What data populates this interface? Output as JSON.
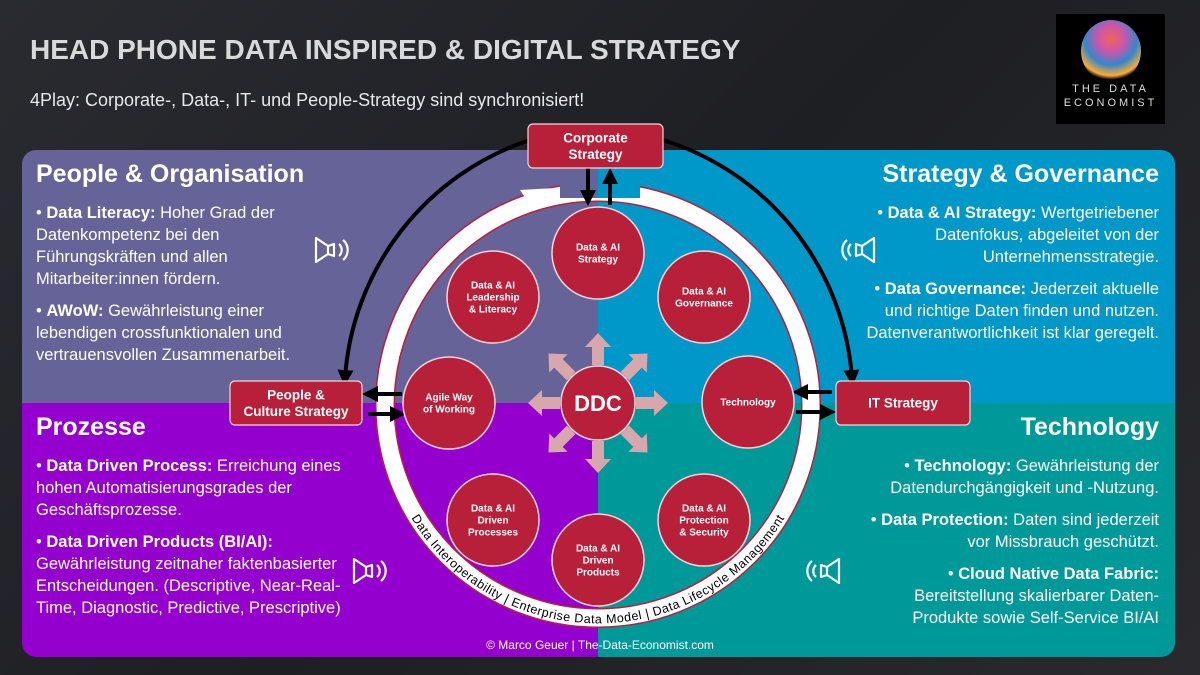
{
  "header": {
    "title": "HEAD PHONE DATA INSPIRED & DIGITAL STRATEGY",
    "subtitle": "4Play: Corporate-, Data-, IT- und People-Strategy sind synchronisiert!"
  },
  "logo": {
    "line1": "THE DATA",
    "line2": "ECONOMIST"
  },
  "panels": {
    "people": {
      "title": "People & Organisation",
      "color": "#656397",
      "items": [
        {
          "bold": "Data Literacy:",
          "text": " Hoher Grad der Datenkompetenz bei den Führungskräften und allen Mitarbeiter:innen fördern."
        },
        {
          "bold": "AWoW:",
          "text": " Gewährleistung einer lebendigen crossfunktionalen und vertrauensvollen Zusammenarbeit."
        }
      ]
    },
    "strategy": {
      "title": "Strategy & Governance",
      "color": "#0097c9",
      "items": [
        {
          "bold": "Data & AI Strategy:",
          "text": " Wertgetriebener Datenfokus, abgeleitet von der Unternehmensstrategie."
        },
        {
          "bold": "Data Governance:",
          "text": " Jederzeit aktuelle und richtige Daten finden und nutzen. Datenverantwortlichkeit ist klar geregelt."
        }
      ]
    },
    "prozesse": {
      "title": "Prozesse",
      "color": "#9400cd",
      "items": [
        {
          "bold": "Data Driven Process:",
          "text": " Erreichung eines hohen Automatisierungsgrades der Geschäftsprozesse."
        },
        {
          "bold": "Data Driven Products (BI/AI):",
          "text": " Gewährleistung zeitnaher faktenbasierter Entscheidungen. (Descriptive, Near-Real-Time, Diagnostic, Predictive, Prescriptive)"
        }
      ]
    },
    "technology": {
      "title": "Technology",
      "color": "#00999a",
      "items": [
        {
          "bold": "Technology:",
          "text": " Gewährleistung der Datendurchgängigkeit und -Nutzung."
        },
        {
          "bold": "Data Protection:",
          "text": " Daten sind jederzeit vor Missbrauch geschützt."
        },
        {
          "bold": "Cloud Native Data Fabric:",
          "text": " Bereitstellung skalierbarer Daten-Produkte sowie Self-Service BI/AI"
        }
      ]
    }
  },
  "diagram": {
    "accent": "#b8203a",
    "boxes": {
      "corporate": [
        "Corporate",
        "Strategy"
      ],
      "people": [
        "People &",
        "Culture Strategy"
      ],
      "it": [
        "IT Strategy"
      ]
    },
    "center": "DDC",
    "nodes": {
      "strategy": [
        "Data & AI",
        "Strategy"
      ],
      "governance": [
        "Data & AI",
        "Governance"
      ],
      "technology": [
        "Technology"
      ],
      "protection": [
        "Data & AI",
        "Protection",
        "& Security"
      ],
      "products": [
        "Data & AI",
        "Driven",
        "Products"
      ],
      "processes": [
        "Data & AI",
        "Driven",
        "Processes"
      ],
      "agile": [
        "Agile Way",
        "of Working"
      ],
      "leadership": [
        "Data & AI",
        "Leadership",
        "& Literacy"
      ]
    },
    "ring_text": "Data Interoperability  |  Enterprise Data Model  |  Data Lifecycle Management"
  },
  "footer": "© Marco Geuer | The-Data-Economist.com"
}
